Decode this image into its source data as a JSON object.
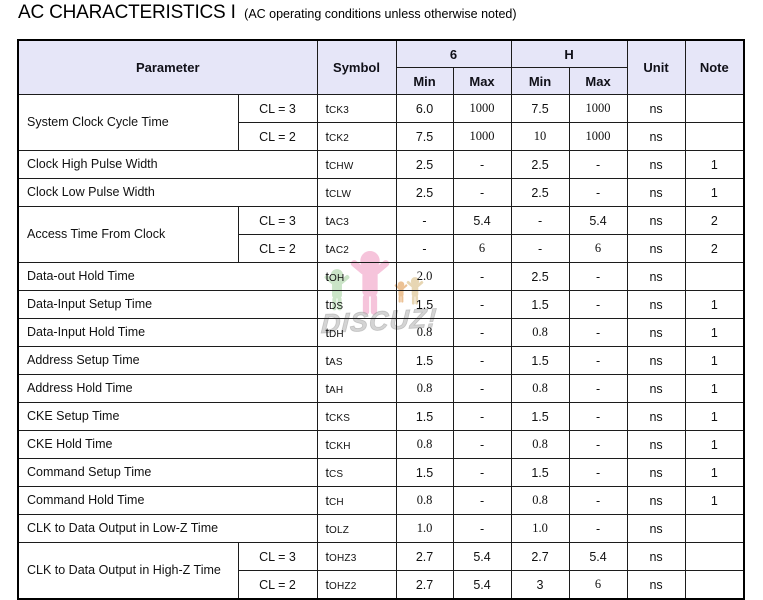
{
  "title": "AC CHARACTERISTICS I",
  "subtitle": "(AC operating conditions unless otherwise noted)",
  "watermark": {
    "text": "DISCUZ!"
  },
  "colors": {
    "header_bg": "#e6e6f8",
    "border": "#1c1c1c",
    "watermark_pink": "#ee8ab8",
    "watermark_green": "#9fcf9a",
    "watermark_orange": "#e09a50",
    "watermark_tan": "#d8bc82",
    "watermark_text_gray": "#bababa"
  },
  "table": {
    "header": {
      "parameter": "Parameter",
      "symbol": "Symbol",
      "col6": "6",
      "colH": "H",
      "min": "Min",
      "max": "Max",
      "unit": "Unit",
      "note": "Note"
    },
    "rows": [
      {
        "parameter": "System Clock Cycle Time",
        "rowspan": 2,
        "cl": "CL = 3",
        "symbol_prefix": "t",
        "symbol_suffix": "CK3",
        "values": [
          "6.0",
          "1000",
          "7.5",
          "1000"
        ],
        "unit": "ns",
        "note": ""
      },
      {
        "cl": "CL = 2",
        "symbol_prefix": "t",
        "symbol_suffix": "CK2",
        "values": [
          "7.5",
          "1000",
          "10",
          "1000"
        ],
        "unit": "ns",
        "note": ""
      },
      {
        "parameter": "Clock High Pulse Width",
        "symbol_prefix": "t",
        "symbol_suffix": "CHW",
        "values": [
          "2.5",
          "-",
          "2.5",
          "-"
        ],
        "unit": "ns",
        "note": "1"
      },
      {
        "parameter": "Clock Low Pulse Width",
        "symbol_prefix": "t",
        "symbol_suffix": "CLW",
        "values": [
          "2.5",
          "-",
          "2.5",
          "-"
        ],
        "unit": "ns",
        "note": "1"
      },
      {
        "parameter": "Access Time From Clock",
        "rowspan": 2,
        "cl": "CL = 3",
        "symbol_prefix": "t",
        "symbol_suffix": "AC3",
        "values": [
          "-",
          "5.4",
          "-",
          "5.4"
        ],
        "unit": "ns",
        "note": "2"
      },
      {
        "cl": "CL = 2",
        "symbol_prefix": "t",
        "symbol_suffix": "AC2",
        "values": [
          "-",
          "6",
          "-",
          "6"
        ],
        "unit": "ns",
        "note": "2"
      },
      {
        "parameter": "Data-out Hold Time",
        "symbol_prefix": "t",
        "symbol_suffix": "OH",
        "values": [
          "2.0",
          "-",
          "2.5",
          "-"
        ],
        "unit": "ns",
        "note": ""
      },
      {
        "parameter": "Data-Input Setup Time",
        "symbol_prefix": "t",
        "symbol_suffix": "DS",
        "values": [
          "1.5",
          "-",
          "1.5",
          "-"
        ],
        "unit": "ns",
        "note": "1"
      },
      {
        "parameter": "Data-Input Hold Time",
        "symbol_prefix": "t",
        "symbol_suffix": "DH",
        "values": [
          "0.8",
          "-",
          "0.8",
          "-"
        ],
        "unit": "ns",
        "note": "1"
      },
      {
        "parameter": "Address Setup Time",
        "symbol_prefix": "t",
        "symbol_suffix": "AS",
        "values": [
          "1.5",
          "-",
          "1.5",
          "-"
        ],
        "unit": "ns",
        "note": "1"
      },
      {
        "parameter": "Address Hold Time",
        "symbol_prefix": "t",
        "symbol_suffix": "AH",
        "values": [
          "0.8",
          "-",
          "0.8",
          "-"
        ],
        "unit": "ns",
        "note": "1"
      },
      {
        "parameter": "CKE Setup Time",
        "symbol_prefix": "t",
        "symbol_suffix": "CKS",
        "values": [
          "1.5",
          "-",
          "1.5",
          "-"
        ],
        "unit": "ns",
        "note": "1"
      },
      {
        "parameter": "CKE Hold Time",
        "symbol_prefix": "t",
        "symbol_suffix": "CKH",
        "values": [
          "0.8",
          "-",
          "0.8",
          "-"
        ],
        "unit": "ns",
        "note": "1"
      },
      {
        "parameter": "Command Setup Time",
        "symbol_prefix": "t",
        "symbol_suffix": "CS",
        "values": [
          "1.5",
          "-",
          "1.5",
          "-"
        ],
        "unit": "ns",
        "note": "1"
      },
      {
        "parameter": "Command Hold Time",
        "symbol_prefix": "t",
        "symbol_suffix": "CH",
        "values": [
          "0.8",
          "-",
          "0.8",
          "-"
        ],
        "unit": "ns",
        "note": "1"
      },
      {
        "parameter": "CLK to Data Output in Low-Z Time",
        "symbol_prefix": "t",
        "symbol_suffix": "OLZ",
        "values": [
          "1.0",
          "-",
          "1.0",
          "-"
        ],
        "unit": "ns",
        "note": ""
      },
      {
        "parameter": "CLK to Data Output in High-Z Time",
        "rowspan": 2,
        "cl": "CL = 3",
        "symbol_prefix": "t",
        "symbol_suffix": "OHZ3",
        "values": [
          "2.7",
          "5.4",
          "2.7",
          "5.4"
        ],
        "unit": "ns",
        "note": ""
      },
      {
        "cl": "CL = 2",
        "symbol_prefix": "t",
        "symbol_suffix": "OHZ2",
        "values": [
          "2.7",
          "5.4",
          "3",
          "6"
        ],
        "unit": "ns",
        "note": ""
      }
    ]
  }
}
